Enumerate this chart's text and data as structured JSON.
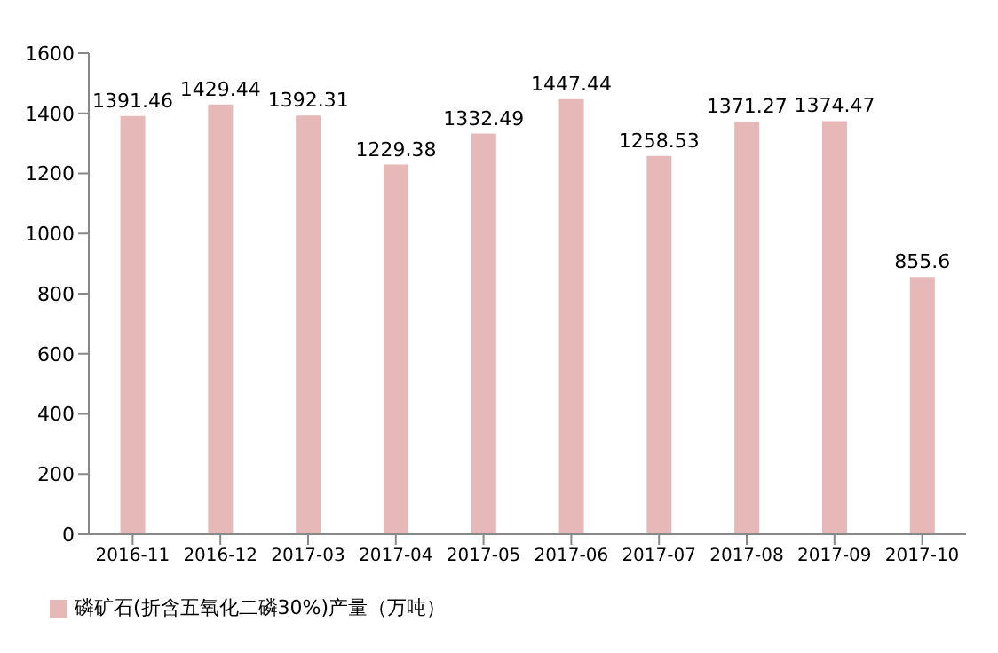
{
  "chart_data": {
    "type": "bar",
    "categories": [
      "2016-11",
      "2016-12",
      "2017-03",
      "2017-04",
      "2017-05",
      "2017-06",
      "2017-07",
      "2017-08",
      "2017-09",
      "2017-10"
    ],
    "series": [
      {
        "name": "磷矿石(折含五氧化二磷30%)产量（万吨）",
        "color": "#e6b9b8",
        "values": [
          1391.46,
          1429.44,
          1392.31,
          1229.38,
          1332.49,
          1447.44,
          1258.53,
          1371.27,
          1374.47,
          855.6
        ]
      }
    ],
    "ylim": [
      0,
      1600
    ],
    "yticks": [
      0,
      200,
      400,
      600,
      800,
      1000,
      1200,
      1400,
      1600
    ],
    "grid": false,
    "legend": "bottom left",
    "data_labels": true
  }
}
